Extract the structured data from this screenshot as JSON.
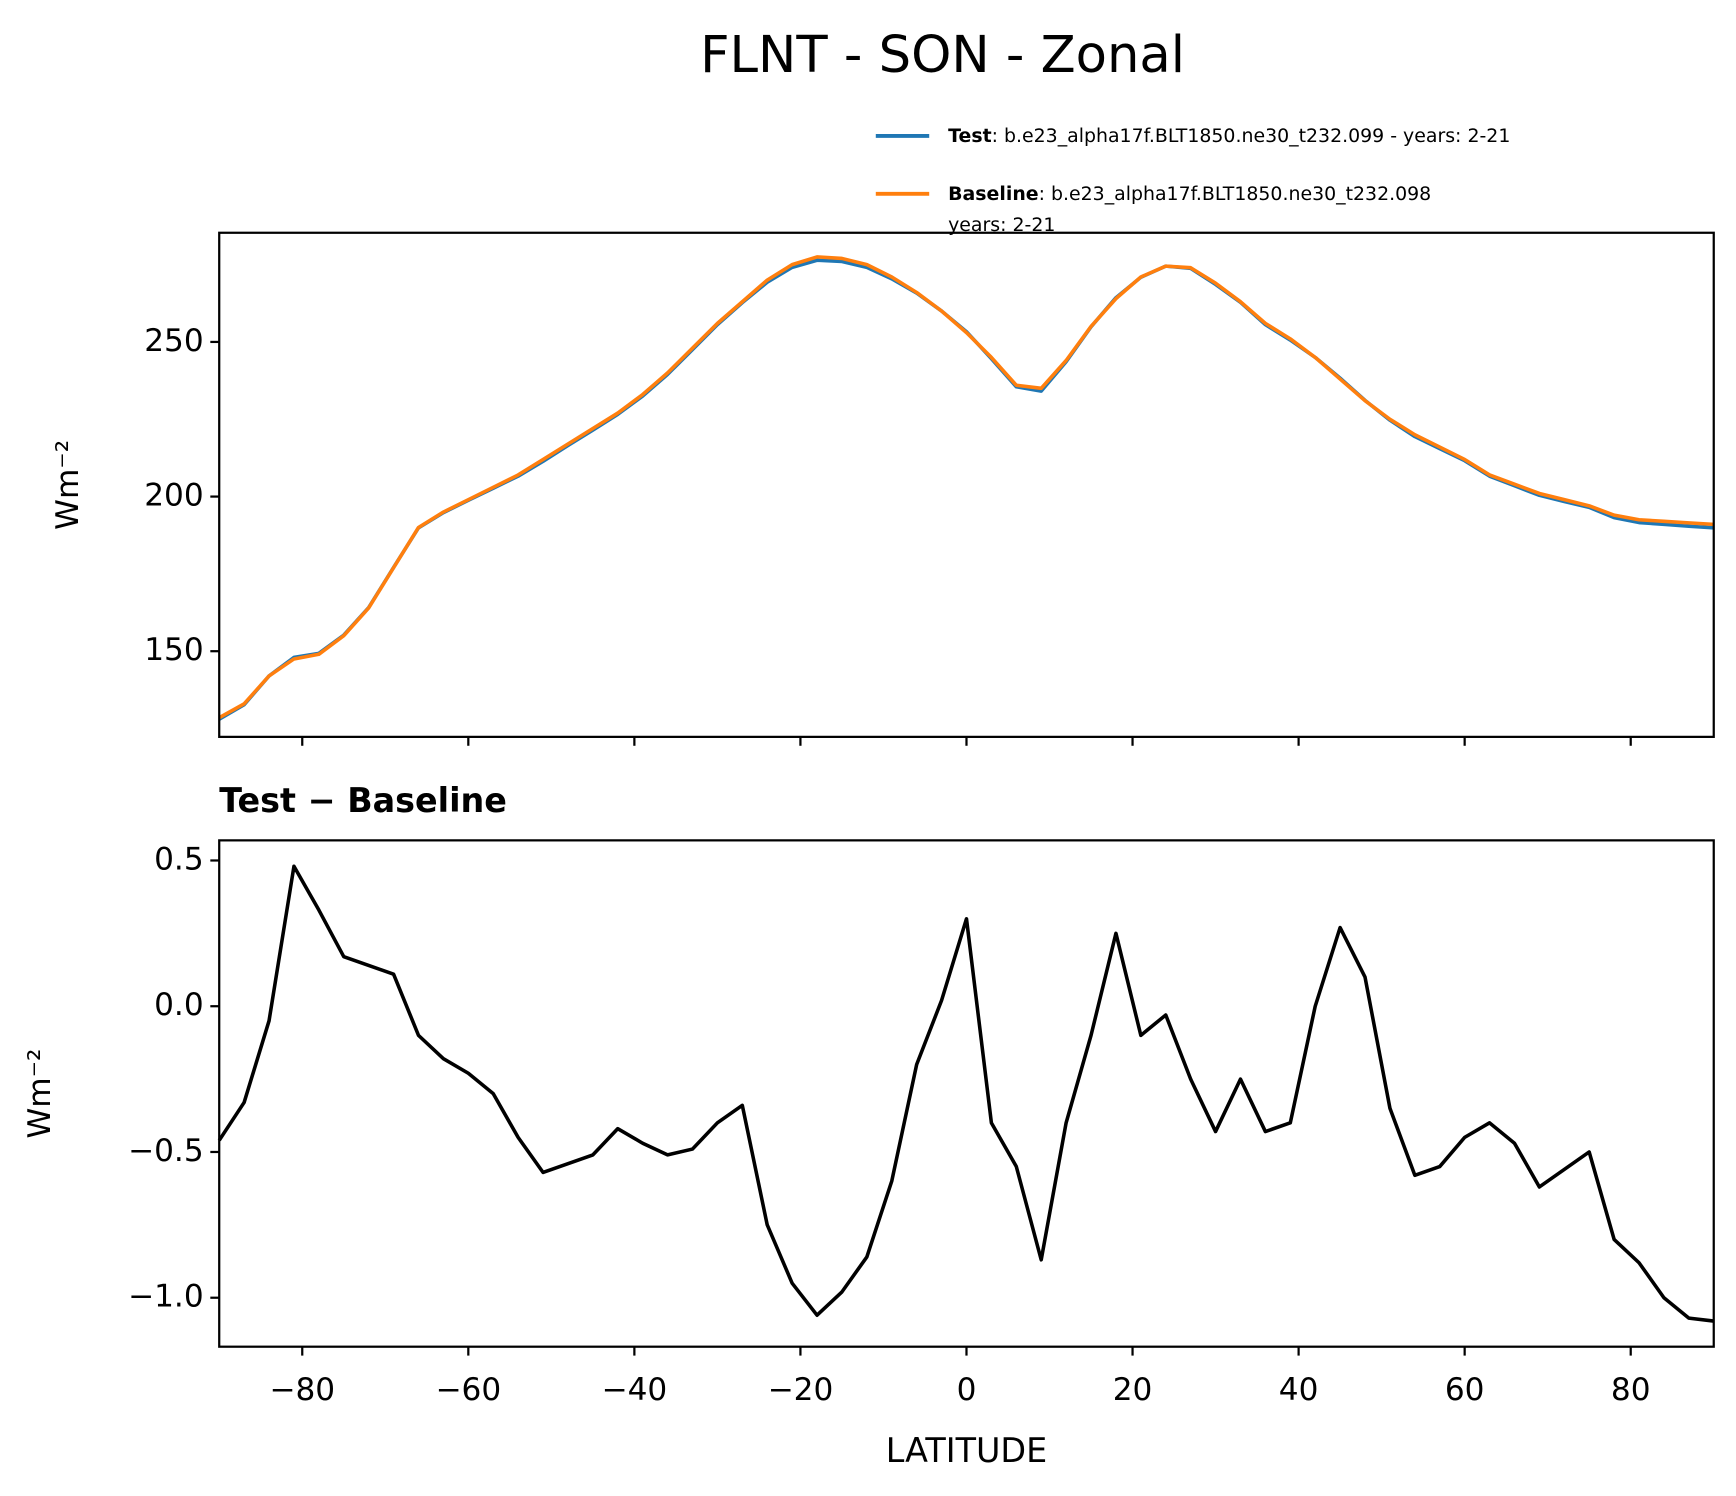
{
  "title": "FLNT - SON - Zonal",
  "chart_data": [
    {
      "type": "line",
      "ylabel": "Wm⁻²",
      "x": [
        -90,
        -87,
        -84,
        -81,
        -78,
        -75,
        -72,
        -69,
        -66,
        -63,
        -60,
        -57,
        -54,
        -51,
        -48,
        -45,
        -42,
        -39,
        -36,
        -33,
        -30,
        -27,
        -24,
        -21,
        -18,
        -15,
        -12,
        -9,
        -6,
        -3,
        0,
        3,
        6,
        9,
        12,
        15,
        18,
        21,
        24,
        27,
        30,
        33,
        36,
        39,
        42,
        45,
        48,
        51,
        54,
        57,
        60,
        63,
        66,
        69,
        72,
        75,
        78,
        81,
        84,
        87,
        90
      ],
      "series": [
        {
          "name": "Test",
          "description": [
            ": b.e23_alpha17f.BLT1850.ne30_t232.099 - years: 2-21"
          ],
          "color": "#1f77b4",
          "values": [
            128.0,
            132.7,
            142.0,
            148.0,
            149.3,
            155.2,
            164.1,
            177.1,
            189.9,
            194.8,
            198.8,
            202.7,
            206.6,
            211.4,
            216.5,
            221.5,
            226.6,
            232.5,
            239.5,
            247.5,
            255.6,
            262.7,
            269.3,
            274.1,
            276.4,
            276.0,
            274.1,
            270.4,
            265.8,
            260.0,
            253.3,
            244.6,
            235.5,
            234.1,
            243.6,
            254.9,
            264.3,
            270.9,
            274.5,
            273.8,
            268.6,
            262.8,
            255.6,
            250.6,
            245.0,
            238.3,
            231.1,
            224.7,
            219.4,
            215.5,
            211.6,
            206.6,
            203.5,
            200.4,
            198.4,
            196.5,
            193.2,
            191.6,
            191.0,
            190.4,
            189.9
          ]
        },
        {
          "name": "Baseline",
          "description": [
            ": b.e23_alpha17f.BLT1850.ne30_t232.098",
            "years: 2-21"
          ],
          "color": "#ff7f0e",
          "values": [
            128.5,
            133,
            142,
            147.5,
            149,
            155,
            164,
            177,
            190,
            195,
            199,
            203,
            207,
            212,
            217,
            222,
            227,
            233,
            240,
            248,
            256,
            263,
            270,
            275,
            277.5,
            277,
            275,
            271,
            266,
            260,
            253,
            245,
            236,
            235,
            244,
            255,
            264,
            271,
            274.5,
            274,
            269,
            263,
            256,
            251,
            245,
            238,
            231,
            225,
            220,
            216,
            212,
            207,
            204,
            201,
            199,
            197,
            194,
            192.5,
            192,
            191.5,
            191
          ]
        }
      ],
      "legend": "upper right",
      "xlim": [
        -90,
        90
      ],
      "xticks": [
        -80,
        -60,
        -40,
        -20,
        0,
        20,
        40,
        60,
        80
      ],
      "ylim": [
        122.3,
        285.3
      ],
      "yticks": [
        150,
        200,
        250
      ]
    },
    {
      "type": "line",
      "title": "Test − Baseline",
      "xlabel": "LATITUDE",
      "ylabel": "Wm⁻²",
      "x": [
        -90,
        -87,
        -84,
        -81,
        -78,
        -75,
        -72,
        -69,
        -66,
        -63,
        -60,
        -57,
        -54,
        -51,
        -48,
        -45,
        -42,
        -39,
        -36,
        -33,
        -30,
        -27,
        -24,
        -21,
        -18,
        -15,
        -12,
        -9,
        -6,
        -3,
        0,
        3,
        6,
        9,
        12,
        15,
        18,
        21,
        24,
        27,
        30,
        33,
        36,
        39,
        42,
        45,
        48,
        51,
        54,
        57,
        60,
        63,
        66,
        69,
        72,
        75,
        78,
        81,
        84,
        87,
        90
      ],
      "series": [
        {
          "color": "#000000",
          "values": [
            -0.46,
            -0.33,
            -0.05,
            0.48,
            0.33,
            0.17,
            0.14,
            0.11,
            -0.1,
            -0.18,
            -0.23,
            -0.3,
            -0.45,
            -0.57,
            -0.54,
            -0.51,
            -0.42,
            -0.47,
            -0.51,
            -0.49,
            -0.4,
            -0.34,
            -0.75,
            -0.95,
            -1.06,
            -0.98,
            -0.86,
            -0.6,
            -0.2,
            0.02,
            0.3,
            -0.4,
            -0.55,
            -0.87,
            -0.4,
            -0.1,
            0.25,
            -0.1,
            -0.03,
            -0.25,
            -0.43,
            -0.25,
            -0.43,
            -0.4,
            0.0,
            0.27,
            0.1,
            -0.35,
            -0.58,
            -0.55,
            -0.45,
            -0.4,
            -0.47,
            -0.62,
            -0.56,
            -0.5,
            -0.8,
            -0.88,
            -1.0,
            -1.07,
            -1.08
          ]
        }
      ],
      "xlim": [
        -90,
        90
      ],
      "xticks": [
        {
          "value": -80,
          "label": "−80"
        },
        {
          "value": -60,
          "label": "−60"
        },
        {
          "value": -40,
          "label": "−40"
        },
        {
          "value": -20,
          "label": "−20"
        },
        0,
        20,
        40,
        60,
        80
      ],
      "ylim": [
        -1.168,
        0.569
      ],
      "yticks": [
        {
          "value": -1.0,
          "label": "−1.0"
        },
        {
          "value": -0.5,
          "label": "−0.5"
        },
        {
          "value": 0,
          "label": "0.0"
        },
        0.5
      ]
    }
  ]
}
